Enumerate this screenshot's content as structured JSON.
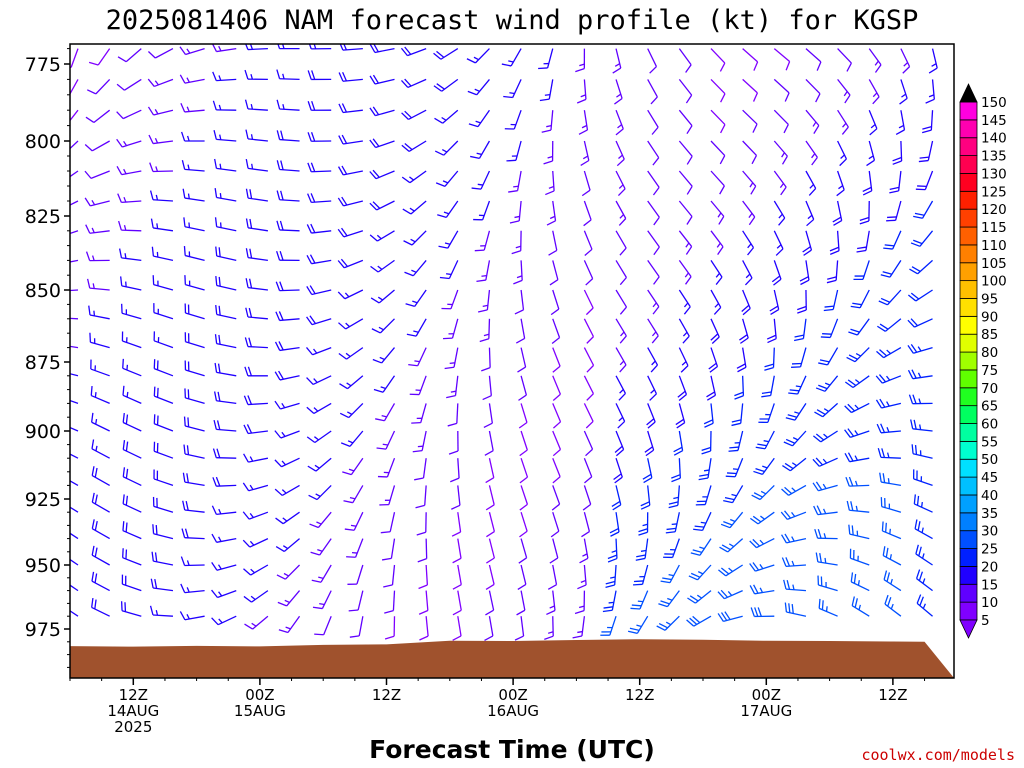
{
  "chart_data": {
    "type": "wind-barb-time-height",
    "title": "2025081406 NAM forecast wind profile (kt) for KGSP",
    "xlabel": "Forecast Time (UTC)",
    "credit": "coolwx.com/models",
    "y_axis": {
      "quantity": "pressure (mb)",
      "range": [
        965,
        988
      ],
      "direction": "inverted",
      "tick_values": [
        775,
        800,
        825,
        850,
        875,
        900,
        925,
        950,
        975
      ],
      "tick_labels": [
        "775",
        "800",
        "825",
        "850",
        "875",
        "900",
        "925",
        "950",
        "975"
      ]
    },
    "x_axis": {
      "range": [
        "2025-08-14 06Z",
        "2025-08-17 15Z"
      ],
      "ticks": [
        {
          "time": "2025-08-14 12Z",
          "lines": [
            "12Z",
            "14AUG",
            "2025"
          ]
        },
        {
          "time": "2025-08-15 00Z",
          "lines": [
            "00Z",
            "15AUG"
          ]
        },
        {
          "time": "2025-08-15 12Z",
          "lines": [
            "12Z"
          ]
        },
        {
          "time": "2025-08-16 00Z",
          "lines": [
            "00Z",
            "16AUG"
          ]
        },
        {
          "time": "2025-08-16 12Z",
          "lines": [
            "12Z"
          ]
        },
        {
          "time": "2025-08-17 00Z",
          "lines": [
            "00Z",
            "17AUG"
          ]
        },
        {
          "time": "2025-08-17 12Z",
          "lines": [
            "12Z"
          ]
        }
      ]
    },
    "colorbar": {
      "unit": "kt",
      "levels": [
        5,
        10,
        15,
        20,
        25,
        30,
        35,
        40,
        45,
        50,
        55,
        60,
        65,
        70,
        75,
        80,
        85,
        90,
        95,
        100,
        105,
        110,
        115,
        120,
        125,
        130,
        135,
        140,
        145,
        150
      ],
      "colors": [
        "#8000ff",
        "#6000ff",
        "#2000ff",
        "#0020ff",
        "#0050ff",
        "#0080ff",
        "#00a0ff",
        "#00c0ff",
        "#00e0ff",
        "#00ffd0",
        "#00ffa0",
        "#00ff60",
        "#20ff20",
        "#60ff00",
        "#a0ff00",
        "#e0ff00",
        "#ffff00",
        "#ffe000",
        "#ffc000",
        "#ffa000",
        "#ff8000",
        "#ff6000",
        "#ff4000",
        "#ff2000",
        "#ff0020",
        "#ff0050",
        "#ff0080",
        "#ff00b0",
        "#ff00e0",
        "#ff00ff"
      ],
      "under_color": "#8000ff",
      "over_color": "#000000"
    },
    "terrain": {
      "color": "#a0522d",
      "times": [
        "2025-08-14 06Z",
        "2025-08-14 12Z",
        "2025-08-14 18Z",
        "2025-08-15 00Z",
        "2025-08-15 06Z",
        "2025-08-15 12Z",
        "2025-08-15 18Z",
        "2025-08-16 00Z",
        "2025-08-16 06Z",
        "2025-08-16 12Z",
        "2025-08-16 18Z",
        "2025-08-17 00Z",
        "2025-08-17 06Z",
        "2025-08-17 12Z",
        "2025-08-17 15Z"
      ],
      "surface_pressure": [
        981.7,
        981.9,
        981.6,
        981.8,
        981.2,
        981.0,
        979.6,
        979.7,
        979.3,
        979.0,
        979.2,
        979.6,
        979.7,
        979.9,
        980.0
      ]
    },
    "barb_grid": {
      "time_step_hours": 3,
      "levels_mb": [
        770,
        780,
        790,
        800,
        810,
        820,
        830,
        840,
        850,
        860,
        870,
        880,
        890,
        900,
        910,
        920,
        930,
        940,
        950,
        960,
        970
      ],
      "speed_range_kt": [
        5,
        35
      ],
      "dominant_color_hex": "#8000ff"
    }
  }
}
